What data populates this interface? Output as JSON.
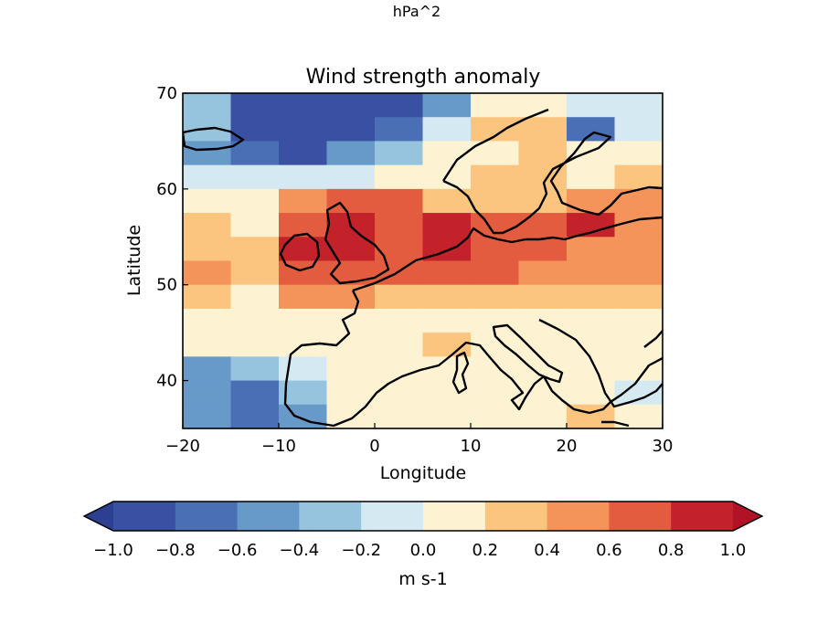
{
  "figure": {
    "suptitle": "hPa^2",
    "title": "Wind strength anomaly",
    "xlabel": "Longitude",
    "ylabel": "Latitude",
    "xlim": [
      -20,
      30
    ],
    "ylim": [
      35,
      70
    ],
    "xticks": [
      "−20",
      "−10",
      "0",
      "10",
      "20",
      "30"
    ],
    "yticks": [
      "40",
      "50",
      "60",
      "70"
    ]
  },
  "colorbar": {
    "label": "m s-1",
    "ticks": [
      "−1.0",
      "−0.8",
      "−0.6",
      "−0.4",
      "−0.2",
      "0.0",
      "0.2",
      "0.4",
      "0.6",
      "0.8",
      "1.0"
    ],
    "colors": [
      "#3a50a2",
      "#4a6fb5",
      "#6799c9",
      "#96c4df",
      "#d5e9f3",
      "#fdf3d2",
      "#fbc47f",
      "#f4935a",
      "#e35c3f",
      "#c3222b"
    ],
    "under_color": "#2d3f91",
    "over_color": "#b11226"
  },
  "chart_data": {
    "type": "heatmap",
    "title": "Wind strength anomaly",
    "xlabel": "Longitude",
    "ylabel": "Latitude",
    "xlim": [
      -20,
      30
    ],
    "ylim": [
      35,
      70
    ],
    "x": [
      -17.5,
      -12.5,
      -7.5,
      -2.5,
      2.5,
      7.5,
      12.5,
      17.5,
      22.5,
      27.5
    ],
    "y": [
      68.75,
      66.25,
      63.75,
      61.25,
      58.75,
      56.25,
      53.75,
      51.25,
      48.75,
      46.25,
      43.75,
      41.25,
      38.75,
      36.25
    ],
    "values": [
      [
        -0.3,
        -0.9,
        -0.9,
        -0.9,
        -0.9,
        -0.6,
        0.1,
        0.1,
        -0.1,
        -0.1
      ],
      [
        -0.3,
        -0.9,
        -0.9,
        -0.9,
        -0.7,
        -0.2,
        0.3,
        0.3,
        -0.7,
        -0.1
      ],
      [
        -0.6,
        -0.7,
        -0.8,
        -0.5,
        -0.3,
        0.1,
        0.2,
        0.3,
        0.1,
        0.1
      ],
      [
        -0.1,
        -0.1,
        -0.2,
        -0.2,
        0.1,
        0.1,
        0.3,
        0.3,
        0.2,
        0.3
      ],
      [
        0.1,
        0.1,
        0.5,
        0.7,
        0.6,
        0.4,
        0.3,
        0.3,
        0.5,
        0.5
      ],
      [
        0.3,
        0.1,
        0.7,
        0.9,
        0.7,
        0.9,
        0.6,
        0.7,
        0.9,
        0.5
      ],
      [
        0.4,
        0.4,
        0.8,
        0.9,
        0.7,
        0.9,
        0.7,
        0.7,
        0.5,
        0.5
      ],
      [
        0.5,
        0.3,
        0.7,
        0.6,
        0.7,
        0.7,
        0.6,
        0.5,
        0.5,
        0.5
      ],
      [
        0.3,
        0.1,
        0.5,
        0.5,
        0.4,
        0.4,
        0.4,
        0.4,
        0.3,
        0.3
      ],
      [
        0.1,
        0.1,
        0.1,
        0.1,
        0.2,
        0.1,
        0.1,
        0.1,
        0.1,
        0.1
      ],
      [
        0.1,
        0.1,
        0.1,
        0.1,
        0.2,
        0.3,
        0.1,
        0.1,
        0.1,
        0.1
      ],
      [
        -0.5,
        -0.3,
        -0.1,
        0.1,
        0.1,
        0.1,
        0.1,
        0.1,
        0.1,
        0.1
      ],
      [
        -0.5,
        -0.7,
        -0.3,
        0.1,
        0.1,
        0.1,
        0.1,
        0.1,
        0.1,
        -0.1
      ],
      [
        -0.5,
        -0.7,
        -0.5,
        0.1,
        0.1,
        0.1,
        0.1,
        0.1,
        0.3,
        0.1
      ]
    ],
    "colorbar_range": [
      -1.0,
      1.0
    ],
    "colorbar_step": 0.2
  }
}
